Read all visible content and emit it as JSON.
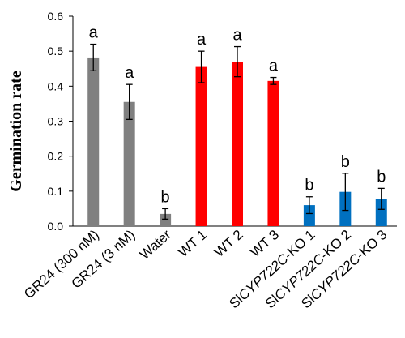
{
  "chart_data": {
    "type": "bar",
    "title": "",
    "xlabel": "",
    "ylabel": "Germination rate",
    "ylim": [
      0,
      0.6
    ],
    "yticks": [
      "0.0",
      "0.1",
      "0.2",
      "0.3",
      "0.4",
      "0.5",
      "0.6"
    ],
    "grid": false,
    "legend": "none",
    "categories": [
      {
        "prefix": "",
        "italic": "",
        "suffix": "GR24 (300 nM)"
      },
      {
        "prefix": "",
        "italic": "",
        "suffix": "GR24 (3 nM)"
      },
      {
        "prefix": "",
        "italic": "",
        "suffix": "Water"
      },
      {
        "prefix": "",
        "italic": "",
        "suffix": "WT 1"
      },
      {
        "prefix": "",
        "italic": "",
        "suffix": "WT 2"
      },
      {
        "prefix": "",
        "italic": "",
        "suffix": "WT 3"
      },
      {
        "prefix": "Sl",
        "italic": "CYP722C",
        "suffix": "-KO 1"
      },
      {
        "prefix": "Sl",
        "italic": "CYP722C",
        "suffix": "-KO 2"
      },
      {
        "prefix": "Sl",
        "italic": "CYP722C",
        "suffix": "-KO 3"
      }
    ],
    "values": [
      0.482,
      0.355,
      0.035,
      0.455,
      0.47,
      0.415,
      0.06,
      0.098,
      0.078
    ],
    "errors": [
      0.038,
      0.05,
      0.015,
      0.045,
      0.043,
      0.01,
      0.024,
      0.053,
      0.03
    ],
    "significance": [
      "a",
      "a",
      "b",
      "a",
      "a",
      "a",
      "b",
      "b",
      "b"
    ],
    "colors": [
      "#808080",
      "#808080",
      "#808080",
      "#ff0000",
      "#ff0000",
      "#ff0000",
      "#0070c0",
      "#0070c0",
      "#0070c0"
    ]
  }
}
